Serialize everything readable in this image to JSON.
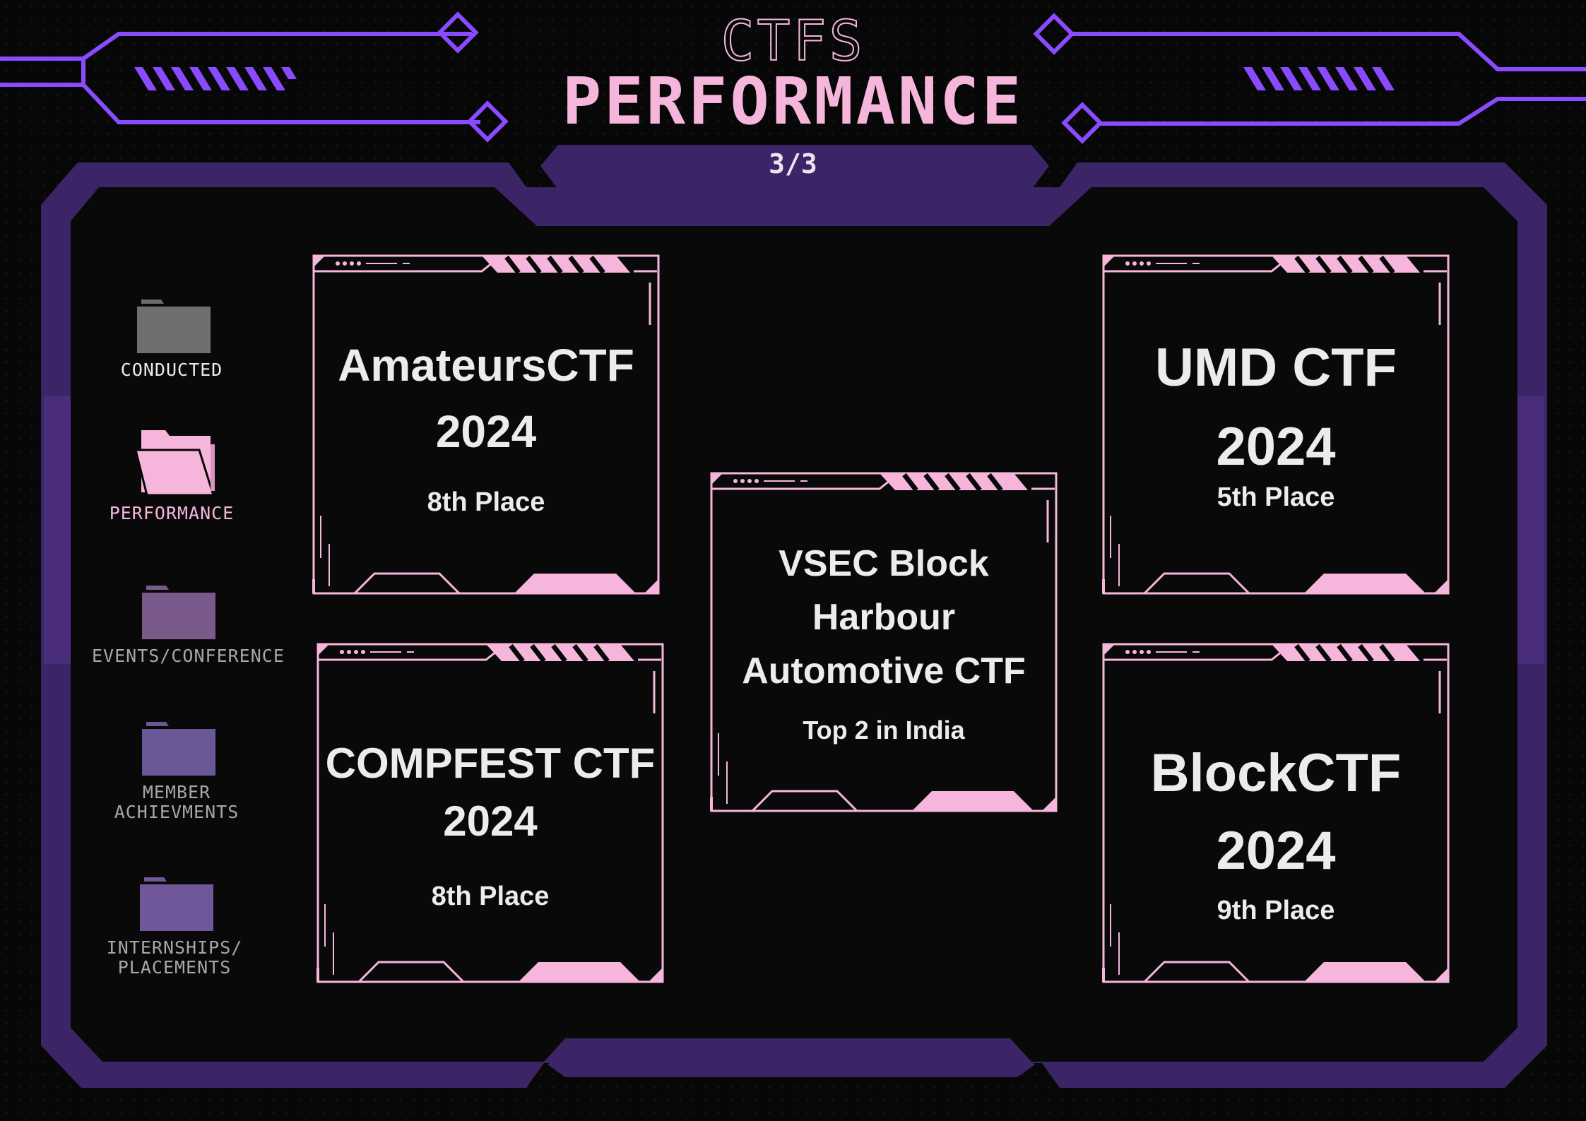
{
  "header": {
    "title_small": "CTFS",
    "title_big": "PERFORMANCE",
    "page_indicator": "3/3"
  },
  "nav": {
    "items": [
      {
        "label": "CONDUCTED",
        "active": false
      },
      {
        "label": "PERFORMANCE",
        "active": true
      },
      {
        "label": "EVENTS/CONFERENCE",
        "active": false
      },
      {
        "label": "MEMBER\nACHIEVMENTS",
        "active": false
      },
      {
        "label": "INTERNSHIPS/\nPLACEMENTS",
        "active": false
      }
    ]
  },
  "cards": [
    {
      "title": "AmateursCTF\n2024",
      "result": "8th Place"
    },
    {
      "title": "COMPFEST CTF\n2024",
      "result": "8th Place"
    },
    {
      "title": "VSEC Block\nHarbour\nAutomotive CTF",
      "result": "Top 2 in India"
    },
    {
      "title": "UMD CTF\n2024",
      "result": "5th Place"
    },
    {
      "title": "BlockCTF\n2024",
      "result": "9th Place"
    }
  ],
  "colors": {
    "background": "#070707",
    "frame_purple": "#3b2566",
    "neon_purple": "#8a4bff",
    "accent_pink": "#f6b6dc",
    "text": "#ececec"
  }
}
